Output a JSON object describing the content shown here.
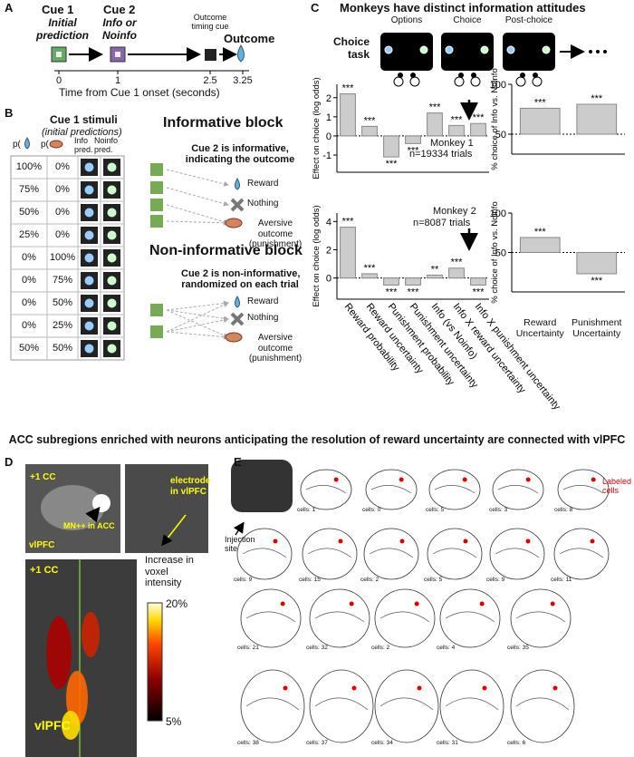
{
  "panel_labels": [
    "A",
    "B",
    "C",
    "D",
    "E"
  ],
  "panel_a": {
    "cue1": "Cue 1",
    "cue1_sub": "Initial prediction",
    "cue2": "Cue 2",
    "cue2_sub": "Info or Noinfo",
    "timing_cue": "Outcome timing cue",
    "outcome": "Outcome",
    "ticks": [
      0,
      1,
      2.5,
      3.25
    ],
    "axis_label": "Time from Cue 1 onset (seconds)"
  },
  "panel_b": {
    "title": "Cue 1 stimuli",
    "subtitle": "(initial predictions)",
    "headers": [
      "p(",
      "p(",
      "Info pred.",
      "Noinfo pred."
    ],
    "rows": [
      [
        "100%",
        "0%"
      ],
      [
        "75%",
        "0%"
      ],
      [
        "50%",
        "0%"
      ],
      [
        "25%",
        "0%"
      ],
      [
        "0%",
        "100%"
      ],
      [
        "0%",
        "75%"
      ],
      [
        "0%",
        "50%"
      ],
      [
        "0%",
        "25%"
      ],
      [
        "50%",
        "50%"
      ]
    ],
    "informative": {
      "title": "Informative block",
      "line1": "Cue 2 is informative,",
      "line2": "indicating the outcome",
      "outcomes": [
        "Reward",
        "Nothing",
        "Aversive outcome (punishment)"
      ]
    },
    "noninformative": {
      "title": "Non-informative block",
      "line1": "Cue 2 is non-informative,",
      "line2": "randomized on each trial",
      "outcomes": [
        "Reward",
        "Nothing",
        "Aversive outcome (punishment)"
      ]
    }
  },
  "panel_c": {
    "title": "Monkeys have distinct information attitudes",
    "task_label": "Choice task",
    "screens": [
      "Options",
      "Choice",
      "Post-choice"
    ]
  },
  "chart_data": [
    {
      "type": "bar",
      "y_label": "Effect on choice (log odds)",
      "annotations": [
        "Monkey 1",
        "n=19334 trials"
      ],
      "values": [
        2.2,
        0.5,
        -1.1,
        -0.4,
        1.2,
        0.55,
        0.65
      ],
      "significance": [
        "***",
        "***",
        "***",
        "***",
        "***",
        "***",
        "***"
      ],
      "color": "#cccccc",
      "ylim": [
        -1.9,
        2.7
      ],
      "yticks": [
        -1,
        0,
        1,
        2
      ],
      "baseline": 0
    },
    {
      "type": "bar",
      "y_label": "% choice of Info vs. Noinfo",
      "values": [
        76,
        80
      ],
      "significance": [
        "***",
        "***"
      ],
      "color": "#cccccc",
      "ylim": [
        30,
        100
      ],
      "yticks": [
        50,
        100
      ],
      "baseline": 50
    },
    {
      "type": "bar",
      "y_label": "Effect on choice (log odds)",
      "annotations": [
        "Monkey 2",
        "n=8087 trials"
      ],
      "categories": [
        "Reward probability",
        "Reward uncertainty",
        "Punishment probability",
        "Punishment uncertainty",
        "Info (vs Noinfo)",
        "Info X reward uncertainty",
        "Info X punishment uncertainty"
      ],
      "values": [
        3.6,
        0.3,
        -0.5,
        -0.5,
        0.2,
        0.7,
        -0.5
      ],
      "significance": [
        "***",
        "***",
        "***",
        "***",
        "**",
        "***",
        "***"
      ],
      "color": "#cccccc",
      "ylim": [
        -1.5,
        4.6
      ],
      "yticks": [
        0,
        2,
        4
      ],
      "baseline": 0
    },
    {
      "type": "bar",
      "y_label": "% choice of Info vs. Noinfo",
      "categories": [
        "Reward Uncertainty",
        "Punishment Uncertainty"
      ],
      "values": [
        69,
        23
      ],
      "significance": [
        "***",
        "***"
      ],
      "color": "#cccccc",
      "ylim": [
        0,
        100
      ],
      "yticks": [
        50,
        100
      ],
      "baseline": 50
    }
  ],
  "headline": "ACC subregions enriched with neurons anticipating the resolution of reward uncertainty are connected with vlPFC",
  "panel_d": {
    "cc_top": "+1 CC",
    "mn_label": "MN++ in ACC",
    "vlpfc_top": "vlPFC",
    "electrode": "electrode in vlPFC",
    "cc_bottom": "+1 CC",
    "vlpfc_bottom": "vlPFC",
    "scale_title": "Increase in voxel intensity",
    "scale_max": "20%",
    "scale_min": "5%"
  },
  "panel_e": {
    "injection": "Injection site",
    "labeled": "Labeled cells",
    "cells": [
      "cells: 1",
      "cells: 0",
      "cells: 5",
      "cells: 3",
      "cells: 8",
      "cells: 9",
      "cells: 15",
      "cells: 2",
      "cells: 5",
      "cells: 9",
      "cells: 11",
      "cells: 21",
      "cells: 32",
      "cells: 2",
      "cells: 4",
      "cells: 35",
      "cells: 38",
      "cells: 37",
      "cells: 34",
      "cells: 31",
      "cells: 6"
    ]
  }
}
